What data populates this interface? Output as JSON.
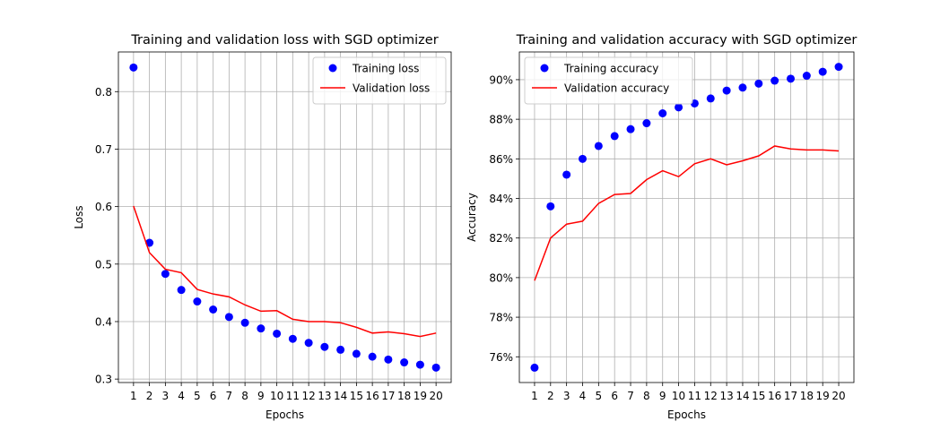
{
  "chart_data": [
    {
      "type": "line",
      "title": "Training and validation loss with SGD optimizer",
      "xlabel": "Epochs",
      "ylabel": "Loss",
      "x": [
        1,
        2,
        3,
        4,
        5,
        6,
        7,
        8,
        9,
        10,
        11,
        12,
        13,
        14,
        15,
        16,
        17,
        18,
        19,
        20
      ],
      "xticks": [
        "1",
        "2",
        "3",
        "4",
        "5",
        "6",
        "7",
        "8",
        "9",
        "10",
        "11",
        "12",
        "13",
        "14",
        "15",
        "16",
        "17",
        "18",
        "19",
        "20"
      ],
      "yticks": [
        0.3,
        0.4,
        0.5,
        0.6,
        0.7,
        0.8
      ],
      "ytick_labels": [
        "0.3",
        "0.4",
        "0.5",
        "0.6",
        "0.7",
        "0.8"
      ],
      "xlim": [
        0.05,
        20.95
      ],
      "ylim": [
        0.294,
        0.869
      ],
      "grid": true,
      "legend_position": "upper right",
      "series": [
        {
          "name": "Training loss",
          "style": "dots",
          "color": "#0000ff",
          "values": [
            0.842,
            0.537,
            0.483,
            0.455,
            0.435,
            0.421,
            0.408,
            0.398,
            0.388,
            0.379,
            0.37,
            0.363,
            0.356,
            0.351,
            0.344,
            0.339,
            0.334,
            0.329,
            0.325,
            0.32
          ]
        },
        {
          "name": "Validation loss",
          "style": "line",
          "color": "#ff0000",
          "values": [
            0.601,
            0.52,
            0.491,
            0.485,
            0.456,
            0.448,
            0.443,
            0.429,
            0.418,
            0.419,
            0.404,
            0.4,
            0.4,
            0.398,
            0.39,
            0.38,
            0.382,
            0.379,
            0.374,
            0.38
          ]
        }
      ]
    },
    {
      "type": "line",
      "title": "Training and validation accuracy with SGD optimizer",
      "xlabel": "Epochs",
      "ylabel": "Accuracy",
      "x": [
        1,
        2,
        3,
        4,
        5,
        6,
        7,
        8,
        9,
        10,
        11,
        12,
        13,
        14,
        15,
        16,
        17,
        18,
        19,
        20
      ],
      "xticks": [
        "1",
        "2",
        "3",
        "4",
        "5",
        "6",
        "7",
        "8",
        "9",
        "10",
        "11",
        "12",
        "13",
        "14",
        "15",
        "16",
        "17",
        "18",
        "19",
        "20"
      ],
      "yticks": [
        76,
        78,
        80,
        82,
        84,
        86,
        88,
        90
      ],
      "ytick_labels": [
        "76%",
        "78%",
        "80%",
        "82%",
        "84%",
        "86%",
        "88%",
        "90%"
      ],
      "xlim": [
        0.05,
        20.95
      ],
      "ylim": [
        74.7,
        91.4
      ],
      "grid": true,
      "legend_position": "upper left",
      "series": [
        {
          "name": "Training accuracy",
          "style": "dots",
          "color": "#0000ff",
          "values": [
            75.45,
            83.6,
            85.2,
            86.0,
            86.65,
            87.15,
            87.5,
            87.8,
            88.3,
            88.6,
            88.8,
            89.05,
            89.45,
            89.6,
            89.8,
            89.95,
            90.05,
            90.2,
            90.4,
            90.65
          ]
        },
        {
          "name": "Validation accuracy",
          "style": "line",
          "color": "#ff0000",
          "values": [
            79.85,
            82.0,
            82.7,
            82.85,
            83.75,
            84.2,
            84.25,
            84.95,
            85.4,
            85.1,
            85.75,
            86.0,
            85.7,
            85.9,
            86.15,
            86.65,
            86.5,
            86.45,
            86.45,
            86.4
          ]
        }
      ]
    }
  ]
}
